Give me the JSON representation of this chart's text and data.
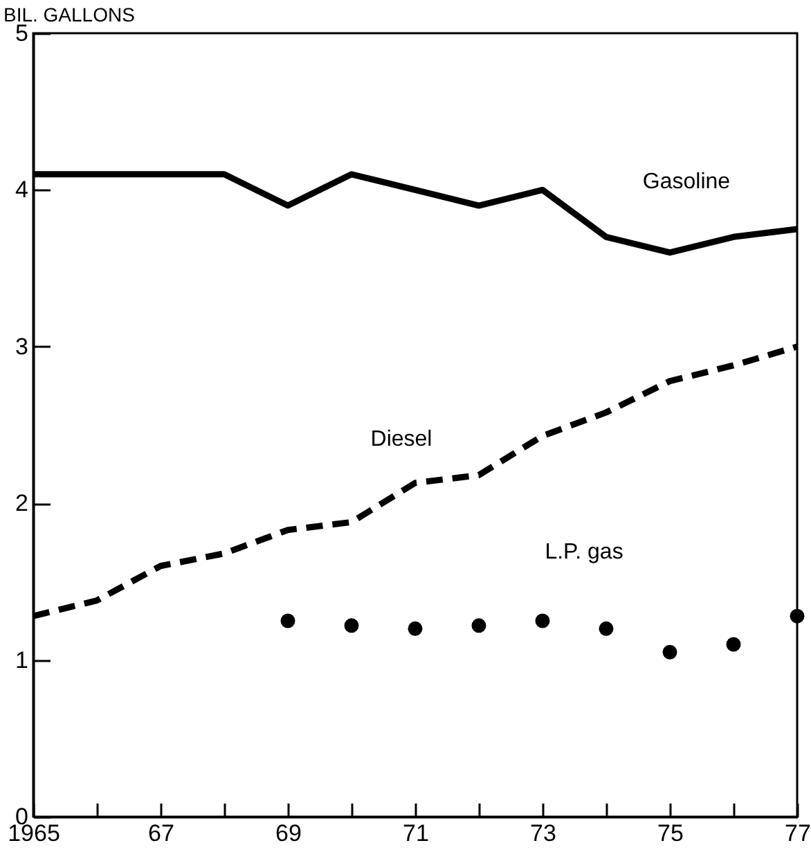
{
  "chart_data": {
    "type": "line",
    "ylabel": "BIL. GALLONS",
    "x": [
      1965,
      1966,
      1967,
      1968,
      1969,
      1970,
      1971,
      1972,
      1973,
      1974,
      1975,
      1976,
      1977
    ],
    "series": [
      {
        "name": "Gasoline",
        "color": "#000000",
        "line_style": "solid",
        "values": [
          4.1,
          4.1,
          4.1,
          4.1,
          3.9,
          4.1,
          4.0,
          3.9,
          4.0,
          3.7,
          3.6,
          3.7,
          3.75
        ]
      },
      {
        "name": "Diesel",
        "color": "#000000",
        "line_style": "dashed",
        "values": [
          1.28,
          1.38,
          1.6,
          1.68,
          1.83,
          1.88,
          2.13,
          2.18,
          2.43,
          2.58,
          2.78,
          2.88,
          3.0
        ]
      },
      {
        "name": "L.P. gas",
        "type": "scatter",
        "marker": "circle",
        "color": "#000000",
        "values": [
          null,
          null,
          null,
          null,
          1.25,
          1.22,
          1.2,
          1.22,
          1.25,
          1.2,
          1.05,
          1.1,
          1.28
        ]
      }
    ],
    "xlim": [
      1965,
      1977
    ],
    "xticks": [
      {
        "value": 1965,
        "label": "1965"
      },
      {
        "value": 1966,
        "label": null
      },
      {
        "value": 1967,
        "label": "67"
      },
      {
        "value": 1968,
        "label": null
      },
      {
        "value": 1969,
        "label": "69"
      },
      {
        "value": 1970,
        "label": null
      },
      {
        "value": 1971,
        "label": "71"
      },
      {
        "value": 1972,
        "label": null
      },
      {
        "value": 1973,
        "label": "73"
      },
      {
        "value": 1974,
        "label": null
      },
      {
        "value": 1975,
        "label": "75"
      },
      {
        "value": 1976,
        "label": null
      },
      {
        "value": 1977,
        "label": "77"
      }
    ],
    "ylim": [
      0,
      5
    ],
    "yticks": [
      0,
      1,
      2,
      3,
      4,
      5
    ]
  }
}
